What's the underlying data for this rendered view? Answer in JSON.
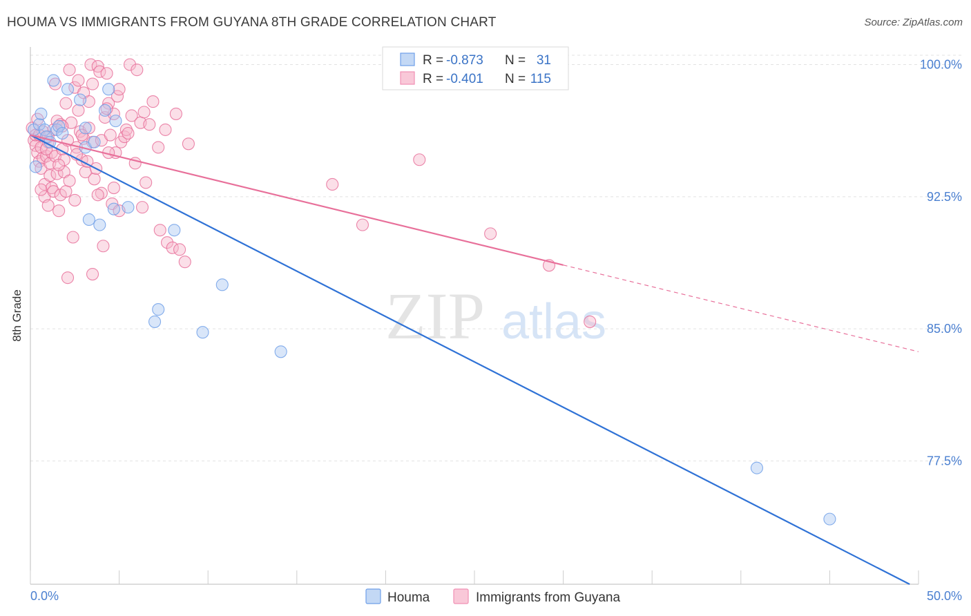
{
  "header": {
    "title": "HOUMA VS IMMIGRANTS FROM GUYANA 8TH GRADE CORRELATION CHART",
    "source": "Source: ZipAtlas.com"
  },
  "watermark": {
    "zip": "ZIP",
    "atlas": "atlas"
  },
  "stats": [
    {
      "r_label": "R =",
      "r_value": "-0.873",
      "n_label": "N =",
      "n_value": "31",
      "color": "#6f9fe8"
    },
    {
      "r_label": "R =",
      "r_value": "-0.401",
      "n_label": "N =",
      "n_value": "115",
      "color": "#f190b4"
    }
  ],
  "chart_data": {
    "type": "scatter",
    "title": "HOUMA VS IMMIGRANTS FROM GUYANA 8TH GRADE CORRELATION CHART",
    "xlabel": "",
    "ylabel": "8th Grade",
    "xlim": [
      0,
      50
    ],
    "ylim": [
      70.5,
      101
    ],
    "x_tick_labels": [
      "0.0%",
      "50.0%"
    ],
    "y_ticks": [
      {
        "value": 100,
        "label": "100.0%"
      },
      {
        "value": 92.5,
        "label": "92.5%"
      },
      {
        "value": 85,
        "label": "85.0%"
      },
      {
        "value": 77.5,
        "label": "77.5%"
      }
    ],
    "grid": true,
    "legend_position": "bottom-center",
    "series": [
      {
        "name": "Houma",
        "color": "#6f9fe8",
        "fill": "#aac8f2",
        "trend": {
          "x0": 0,
          "y0": 96.0,
          "x1": 49.5,
          "y1": 70.5,
          "dashed_from": null
        },
        "points": [
          [
            0.2,
            96.3
          ],
          [
            0.5,
            96.6
          ],
          [
            0.6,
            97.2
          ],
          [
            0.8,
            96.3
          ],
          [
            0.9,
            95.9
          ],
          [
            1.1,
            95.6
          ],
          [
            1.3,
            99.1
          ],
          [
            1.5,
            96.3
          ],
          [
            1.6,
            96.5
          ],
          [
            1.8,
            96.1
          ],
          [
            2.1,
            98.6
          ],
          [
            2.8,
            98.0
          ],
          [
            3.1,
            96.4
          ],
          [
            3.1,
            95.3
          ],
          [
            3.6,
            95.6
          ],
          [
            4.2,
            97.4
          ],
          [
            4.4,
            98.6
          ],
          [
            4.8,
            96.8
          ],
          [
            3.3,
            91.2
          ],
          [
            3.9,
            90.9
          ],
          [
            4.7,
            91.8
          ],
          [
            5.5,
            91.9
          ],
          [
            8.1,
            90.6
          ],
          [
            7.2,
            86.1
          ],
          [
            7.0,
            85.4
          ],
          [
            10.8,
            87.5
          ],
          [
            9.7,
            84.8
          ],
          [
            14.1,
            83.7
          ],
          [
            40.9,
            77.1
          ],
          [
            45.0,
            74.2
          ],
          [
            0.3,
            94.2
          ]
        ]
      },
      {
        "name": "Immigrants from Guyana",
        "color": "#e8709a",
        "fill": "#f7b8cd",
        "trend": {
          "x0": 0,
          "y0": 96.0,
          "x1": 50,
          "y1": 83.7,
          "dashed_from": 30.0
        },
        "points": [
          [
            0.1,
            96.4
          ],
          [
            0.2,
            95.7
          ],
          [
            0.3,
            95.4
          ],
          [
            0.3,
            96.0
          ],
          [
            0.4,
            96.9
          ],
          [
            0.4,
            95.0
          ],
          [
            0.5,
            94.5
          ],
          [
            0.6,
            94.1
          ],
          [
            0.6,
            95.3
          ],
          [
            0.7,
            94.7
          ],
          [
            0.7,
            96.2
          ],
          [
            0.8,
            92.5
          ],
          [
            0.8,
            93.2
          ],
          [
            0.9,
            94.8
          ],
          [
            1.0,
            95.6
          ],
          [
            1.0,
            92.0
          ],
          [
            1.1,
            93.7
          ],
          [
            1.1,
            94.4
          ],
          [
            1.2,
            95.0
          ],
          [
            1.2,
            93.0
          ],
          [
            1.3,
            92.8
          ],
          [
            1.3,
            96.3
          ],
          [
            1.4,
            94.8
          ],
          [
            1.5,
            93.8
          ],
          [
            1.5,
            96.8
          ],
          [
            1.6,
            91.7
          ],
          [
            1.7,
            96.6
          ],
          [
            1.7,
            92.6
          ],
          [
            1.8,
            95.2
          ],
          [
            1.9,
            93.9
          ],
          [
            1.9,
            94.6
          ],
          [
            2.0,
            92.8
          ],
          [
            2.0,
            97.8
          ],
          [
            2.1,
            95.7
          ],
          [
            2.2,
            99.7
          ],
          [
            2.3,
            96.7
          ],
          [
            2.4,
            90.2
          ],
          [
            2.5,
            92.3
          ],
          [
            2.5,
            98.7
          ],
          [
            2.6,
            95.3
          ],
          [
            2.7,
            97.4
          ],
          [
            2.7,
            99.1
          ],
          [
            2.8,
            96.2
          ],
          [
            2.9,
            94.6
          ],
          [
            3.0,
            98.4
          ],
          [
            3.0,
            95.8
          ],
          [
            3.1,
            93.9
          ],
          [
            3.2,
            94.5
          ],
          [
            3.3,
            97.9
          ],
          [
            3.4,
            100.0
          ],
          [
            3.5,
            98.9
          ],
          [
            3.5,
            95.6
          ],
          [
            3.6,
            93.5
          ],
          [
            3.7,
            94.1
          ],
          [
            3.8,
            99.9
          ],
          [
            3.9,
            99.6
          ],
          [
            4.0,
            95.7
          ],
          [
            4.0,
            92.7
          ],
          [
            4.1,
            89.7
          ],
          [
            4.2,
            97.0
          ],
          [
            4.3,
            99.5
          ],
          [
            4.4,
            97.8
          ],
          [
            4.5,
            96.0
          ],
          [
            4.6,
            92.1
          ],
          [
            4.7,
            97.2
          ],
          [
            4.8,
            95.0
          ],
          [
            4.9,
            98.2
          ],
          [
            5.0,
            91.7
          ],
          [
            5.1,
            95.6
          ],
          [
            5.3,
            95.9
          ],
          [
            5.4,
            96.3
          ],
          [
            5.6,
            100.0
          ],
          [
            5.7,
            97.1
          ],
          [
            5.9,
            94.4
          ],
          [
            6.0,
            99.7
          ],
          [
            6.2,
            96.7
          ],
          [
            6.3,
            91.9
          ],
          [
            6.5,
            93.3
          ],
          [
            6.7,
            96.6
          ],
          [
            6.9,
            97.9
          ],
          [
            7.2,
            95.3
          ],
          [
            7.3,
            90.6
          ],
          [
            7.6,
            96.3
          ],
          [
            7.7,
            89.9
          ],
          [
            8.0,
            89.6
          ],
          [
            8.2,
            97.2
          ],
          [
            8.4,
            89.5
          ],
          [
            8.7,
            88.8
          ],
          [
            8.9,
            95.5
          ],
          [
            2.1,
            87.9
          ],
          [
            3.5,
            88.1
          ],
          [
            17.0,
            93.2
          ],
          [
            18.7,
            90.9
          ],
          [
            21.9,
            94.6
          ],
          [
            25.9,
            90.4
          ],
          [
            29.2,
            88.6
          ],
          [
            31.5,
            85.4
          ],
          [
            0.5,
            96.0
          ],
          [
            1.0,
            95.9
          ],
          [
            1.8,
            96.5
          ],
          [
            2.6,
            94.9
          ],
          [
            3.3,
            96.4
          ],
          [
            4.3,
            97.5
          ],
          [
            5.5,
            96.1
          ],
          [
            6.4,
            97.3
          ],
          [
            0.9,
            95.2
          ],
          [
            2.2,
            93.4
          ],
          [
            3.8,
            92.6
          ],
          [
            4.7,
            93.0
          ],
          [
            1.4,
            98.9
          ],
          [
            2.9,
            96.0
          ],
          [
            4.4,
            95.0
          ],
          [
            0.6,
            92.9
          ],
          [
            1.6,
            94.3
          ],
          [
            5.0,
            98.6
          ]
        ]
      }
    ]
  }
}
